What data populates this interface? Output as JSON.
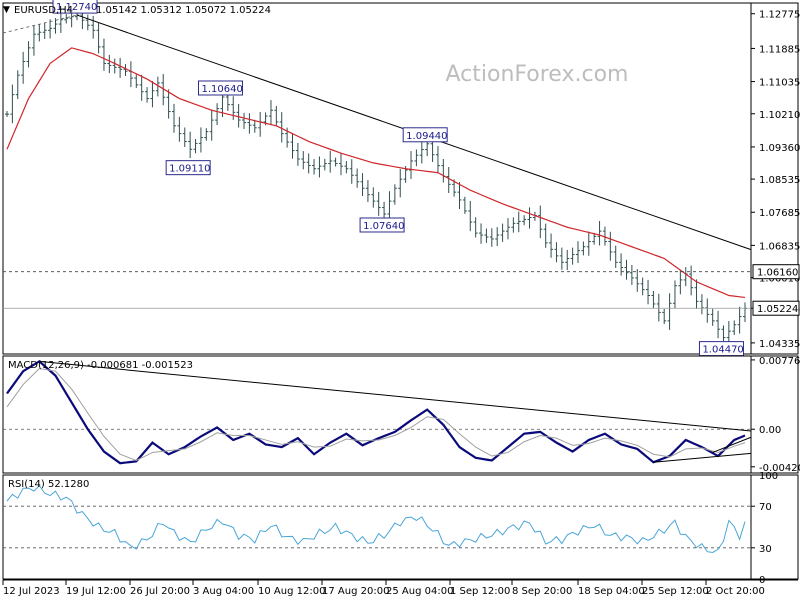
{
  "header": {
    "symbol": "EURUSD,H4",
    "ohlc": "1.05142 1.05312 1.05072 1.05224"
  },
  "watermark": "ActionForex.com",
  "colors": {
    "candle": "#2f4f4f",
    "sma": "#d0262a",
    "trendline": "#000000",
    "macd": "#0a0a7a",
    "signal": "#a0a0a0",
    "rsi": "#4aa6d8",
    "callout": "#1a1a8c"
  },
  "chart_data": [
    {
      "type": "candlestick",
      "panel": "price",
      "title": "EURUSD,H4 1.05142 1.05312 1.05072 1.05224",
      "ylim": [
        1.0405,
        1.1305
      ],
      "y_ticks": [
        "1.12775",
        "1.11885",
        "1.11035",
        "1.10210",
        "1.09360",
        "1.08535",
        "1.07685",
        "1.06835",
        "1.06010",
        "1.05224",
        "1.04335"
      ],
      "x_ticks": [
        "12 Jul 2023",
        "19 Jul 12:00",
        "26 Jul 20:00",
        "3 Aug 04:00",
        "10 Aug 12:00",
        "17 Aug 20:00",
        "25 Aug 04:00",
        "1 Sep 12:00",
        "8 Sep 20:00",
        "18 Sep 04:00",
        "25 Sep 12:00",
        "2 Oct 20:00"
      ],
      "close_anchors": [
        [
          0,
          1.102
        ],
        [
          2,
          1.112
        ],
        [
          5,
          1.1225
        ],
        [
          8,
          1.124
        ],
        [
          10,
          1.1262
        ],
        [
          13,
          1.1274
        ],
        [
          16,
          1.1235
        ],
        [
          18,
          1.115
        ],
        [
          22,
          1.113
        ],
        [
          26,
          1.106
        ],
        [
          28,
          1.11
        ],
        [
          31,
          1.099
        ],
        [
          34,
          1.093
        ],
        [
          37,
          1.0975
        ],
        [
          40,
          1.1064
        ],
        [
          43,
          1.1005
        ],
        [
          46,
          1.0985
        ],
        [
          49,
          1.103
        ],
        [
          51,
          1.097
        ],
        [
          54,
          1.0905
        ],
        [
          57,
          1.088
        ],
        [
          60,
          1.09
        ],
        [
          63,
          1.088
        ],
        [
          66,
          1.083
        ],
        [
          70,
          1.0764
        ],
        [
          72,
          1.083
        ],
        [
          75,
          1.09
        ],
        [
          78,
          1.0944
        ],
        [
          81,
          1.086
        ],
        [
          84,
          1.08
        ],
        [
          87,
          1.0715
        ],
        [
          90,
          1.07
        ],
        [
          94,
          1.074
        ],
        [
          98,
          1.076
        ],
        [
          100,
          1.069
        ],
        [
          103,
          1.064
        ],
        [
          107,
          1.068
        ],
        [
          110,
          1.072
        ],
        [
          113,
          1.064
        ],
        [
          116,
          1.06
        ],
        [
          119,
          1.0555
        ],
        [
          122,
          1.049
        ],
        [
          124,
          1.058
        ],
        [
          126,
          1.061
        ],
        [
          128,
          1.054
        ],
        [
          131,
          1.049
        ],
        [
          133,
          1.0447
        ],
        [
          135,
          1.048
        ],
        [
          137,
          1.0522
        ]
      ],
      "sma": {
        "color": "#d0262a",
        "values": [
          [
            0,
            1.093
          ],
          [
            4,
            1.106
          ],
          [
            8,
            1.115
          ],
          [
            12,
            1.119
          ],
          [
            16,
            1.1175
          ],
          [
            20,
            1.115
          ],
          [
            26,
            1.111
          ],
          [
            32,
            1.106
          ],
          [
            38,
            1.103
          ],
          [
            44,
            1.101
          ],
          [
            50,
            1.099
          ],
          [
            56,
            1.095
          ],
          [
            62,
            1.092
          ],
          [
            68,
            1.0895
          ],
          [
            74,
            1.088
          ],
          [
            80,
            1.087
          ],
          [
            86,
            1.0825
          ],
          [
            92,
            1.079
          ],
          [
            98,
            1.076
          ],
          [
            104,
            1.073
          ],
          [
            110,
            1.071
          ],
          [
            116,
            1.068
          ],
          [
            122,
            1.065
          ],
          [
            128,
            1.059
          ],
          [
            134,
            1.0555
          ],
          [
            137,
            1.055
          ]
        ]
      },
      "trendline": {
        "from": [
          13,
          1.1274
        ],
        "to": [
          137,
          1.0678
        ]
      },
      "horizontal_levels": [
        {
          "value": 1.0616,
          "style": "dashed",
          "label": "1.06160"
        },
        {
          "value": 1.05224,
          "style": "solid",
          "label": "1.05224"
        }
      ],
      "annotations": [
        {
          "label": "1.12740",
          "x": 13,
          "y": 1.1274
        },
        {
          "label": "1.10640",
          "x": 40,
          "y": 1.1064
        },
        {
          "label": "1.09110",
          "x": 34,
          "y": 1.0911
        },
        {
          "label": "1.09440",
          "x": 78,
          "y": 1.0944
        },
        {
          "label": "1.07640",
          "x": 70,
          "y": 1.0764
        },
        {
          "label": "1.04470",
          "x": 133,
          "y": 1.0447
        }
      ]
    },
    {
      "type": "line",
      "panel": "macd",
      "title": "MACD(12,26,9) -0.000681 -0.001523",
      "ylim": [
        -0.0049,
        0.0082
      ],
      "y_ticks": [
        "0.007761",
        "0.00",
        "-0.004205"
      ],
      "series": [
        {
          "name": "MACD",
          "color": "#0a0a7a",
          "values": [
            [
              0,
              0.004
            ],
            [
              3,
              0.0065
            ],
            [
              6,
              0.0076
            ],
            [
              9,
              0.006
            ],
            [
              12,
              0.003
            ],
            [
              15,
              0.0
            ],
            [
              18,
              -0.0025
            ],
            [
              21,
              -0.0038
            ],
            [
              24,
              -0.0036
            ],
            [
              27,
              -0.0015
            ],
            [
              30,
              -0.0028
            ],
            [
              33,
              -0.002
            ],
            [
              36,
              -0.0008
            ],
            [
              39,
              0.0002
            ],
            [
              42,
              -0.0012
            ],
            [
              45,
              -0.0005
            ],
            [
              48,
              -0.0017
            ],
            [
              51,
              -0.002
            ],
            [
              54,
              -0.001
            ],
            [
              57,
              -0.0028
            ],
            [
              60,
              -0.0015
            ],
            [
              63,
              -0.0005
            ],
            [
              66,
              -0.0018
            ],
            [
              69,
              -0.001
            ],
            [
              72,
              -0.0003
            ],
            [
              75,
              0.001
            ],
            [
              78,
              0.0022
            ],
            [
              81,
              0.0005
            ],
            [
              84,
              -0.002
            ],
            [
              87,
              -0.0032
            ],
            [
              90,
              -0.0035
            ],
            [
              93,
              -0.002
            ],
            [
              96,
              -0.0005
            ],
            [
              99,
              -0.0003
            ],
            [
              102,
              -0.0015
            ],
            [
              105,
              -0.0025
            ],
            [
              108,
              -0.0012
            ],
            [
              111,
              -0.0005
            ],
            [
              114,
              -0.0017
            ],
            [
              117,
              -0.0022
            ],
            [
              120,
              -0.0037
            ],
            [
              123,
              -0.003
            ],
            [
              126,
              -0.0012
            ],
            [
              129,
              -0.002
            ],
            [
              132,
              -0.003
            ],
            [
              135,
              -0.0012
            ],
            [
              137,
              -0.0007
            ]
          ]
        },
        {
          "name": "Signal",
          "color": "#a0a0a0",
          "values": [
            [
              0,
              0.0025
            ],
            [
              3,
              0.005
            ],
            [
              6,
              0.0068
            ],
            [
              9,
              0.0065
            ],
            [
              12,
              0.0045
            ],
            [
              15,
              0.0018
            ],
            [
              18,
              -0.0008
            ],
            [
              21,
              -0.0028
            ],
            [
              24,
              -0.0035
            ],
            [
              27,
              -0.0026
            ],
            [
              30,
              -0.0024
            ],
            [
              33,
              -0.0022
            ],
            [
              36,
              -0.0014
            ],
            [
              39,
              -0.0004
            ],
            [
              42,
              -0.0007
            ],
            [
              45,
              -0.0007
            ],
            [
              48,
              -0.0012
            ],
            [
              51,
              -0.0017
            ],
            [
              54,
              -0.0014
            ],
            [
              57,
              -0.002
            ],
            [
              60,
              -0.0019
            ],
            [
              63,
              -0.0011
            ],
            [
              66,
              -0.0013
            ],
            [
              69,
              -0.0012
            ],
            [
              72,
              -0.0007
            ],
            [
              75,
              0.0002
            ],
            [
              78,
              0.0014
            ],
            [
              81,
              0.0011
            ],
            [
              84,
              -0.0005
            ],
            [
              87,
              -0.002
            ],
            [
              90,
              -0.003
            ],
            [
              93,
              -0.0026
            ],
            [
              96,
              -0.0014
            ],
            [
              99,
              -0.0007
            ],
            [
              102,
              -0.001
            ],
            [
              105,
              -0.0018
            ],
            [
              108,
              -0.0016
            ],
            [
              111,
              -0.001
            ],
            [
              114,
              -0.0013
            ],
            [
              117,
              -0.0018
            ],
            [
              120,
              -0.0028
            ],
            [
              123,
              -0.0031
            ],
            [
              126,
              -0.0022
            ],
            [
              129,
              -0.0021
            ],
            [
              132,
              -0.0026
            ],
            [
              135,
              -0.0019
            ],
            [
              137,
              -0.0015
            ]
          ]
        }
      ],
      "trendlines": [
        {
          "from": [
            6,
            0.0076
          ],
          "to": [
            137,
            -0.0002
          ]
        },
        {
          "from": [
            120,
            -0.0037
          ],
          "to": [
            137,
            -0.0027
          ]
        },
        {
          "from": [
            131,
            -0.0026
          ],
          "to": [
            137,
            -0.0009
          ]
        }
      ]
    },
    {
      "type": "line",
      "panel": "rsi",
      "title": "RSI(14) 52.1280",
      "ylim": [
        0,
        100
      ],
      "y_ticks": [
        "100",
        "70",
        "30",
        "0"
      ],
      "levels": [
        70,
        30
      ],
      "series": [
        {
          "name": "RSI(14)",
          "color": "#4aa6d8",
          "values": [
            [
              0,
              75
            ],
            [
              3,
              85
            ],
            [
              5,
              88
            ],
            [
              8,
              82
            ],
            [
              11,
              78
            ],
            [
              14,
              62
            ],
            [
              17,
              50
            ],
            [
              20,
              44
            ],
            [
              23,
              30
            ],
            [
              26,
              38
            ],
            [
              29,
              55
            ],
            [
              31,
              44
            ],
            [
              34,
              35
            ],
            [
              37,
              48
            ],
            [
              40,
              56
            ],
            [
              43,
              42
            ],
            [
              46,
              38
            ],
            [
              49,
              52
            ],
            [
              52,
              40
            ],
            [
              55,
              36
            ],
            [
              58,
              44
            ],
            [
              61,
              50
            ],
            [
              64,
              42
            ],
            [
              67,
              35
            ],
            [
              70,
              42
            ],
            [
              73,
              55
            ],
            [
              76,
              60
            ],
            [
              79,
              48
            ],
            [
              82,
              32
            ],
            [
              85,
              36
            ],
            [
              88,
              40
            ],
            [
              91,
              44
            ],
            [
              94,
              50
            ],
            [
              97,
              54
            ],
            [
              100,
              36
            ],
            [
              103,
              38
            ],
            [
              106,
              46
            ],
            [
              109,
              52
            ],
            [
              112,
              42
            ],
            [
              115,
              40
            ],
            [
              118,
              36
            ],
            [
              121,
              44
            ],
            [
              124,
              54
            ],
            [
              126,
              40
            ],
            [
              129,
              30
            ],
            [
              132,
              25
            ],
            [
              134,
              55
            ],
            [
              136,
              42
            ],
            [
              137,
              52
            ]
          ]
        }
      ]
    }
  ]
}
